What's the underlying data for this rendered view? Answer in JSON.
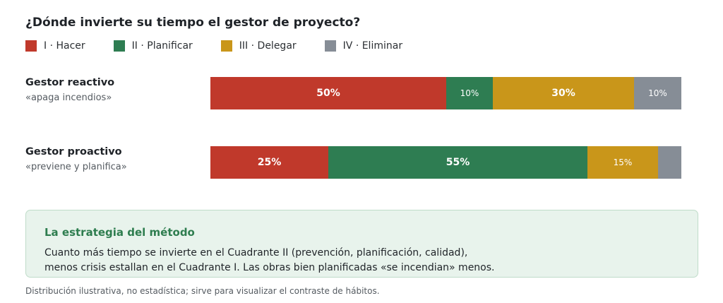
{
  "chart_data": {
    "type": "bar",
    "orientation": "horizontal",
    "stacked": true,
    "title": "¿Dónde invierte su tiempo el gestor de proyecto?",
    "legend_position": "top-left",
    "xlim": [
      0,
      100
    ],
    "series": [
      {
        "name": "I · Hacer",
        "color": "#c0392b"
      },
      {
        "name": "II · Planificar",
        "color": "#2e7d52"
      },
      {
        "name": "III · Delegar",
        "color": "#c9961a"
      },
      {
        "name": "IV · Eliminar",
        "color": "#868d96"
      }
    ],
    "rows": [
      {
        "name": "Gestor reactivo",
        "subtitle": "«apaga incendios»",
        "values": [
          50,
          10,
          30,
          10
        ],
        "labels": [
          "50%",
          "10%",
          "30%",
          "10%"
        ]
      },
      {
        "name": "Gestor proactivo",
        "subtitle": "«previene y planifica»",
        "values": [
          25,
          55,
          15,
          5
        ],
        "labels": [
          "25%",
          "55%",
          "15%",
          ""
        ]
      }
    ]
  },
  "callout": {
    "title": "La estrategia del método",
    "line1": "Cuanto más tiempo se invierte en el Cuadrante II (prevención, planificación, calidad),",
    "line2": "menos crisis estallan en el Cuadrante I. Las obras bien planificadas «se incendian» menos."
  },
  "footnote": "Distribución ilustrativa, no estadística; sirve para visualizar el contraste de hábitos."
}
